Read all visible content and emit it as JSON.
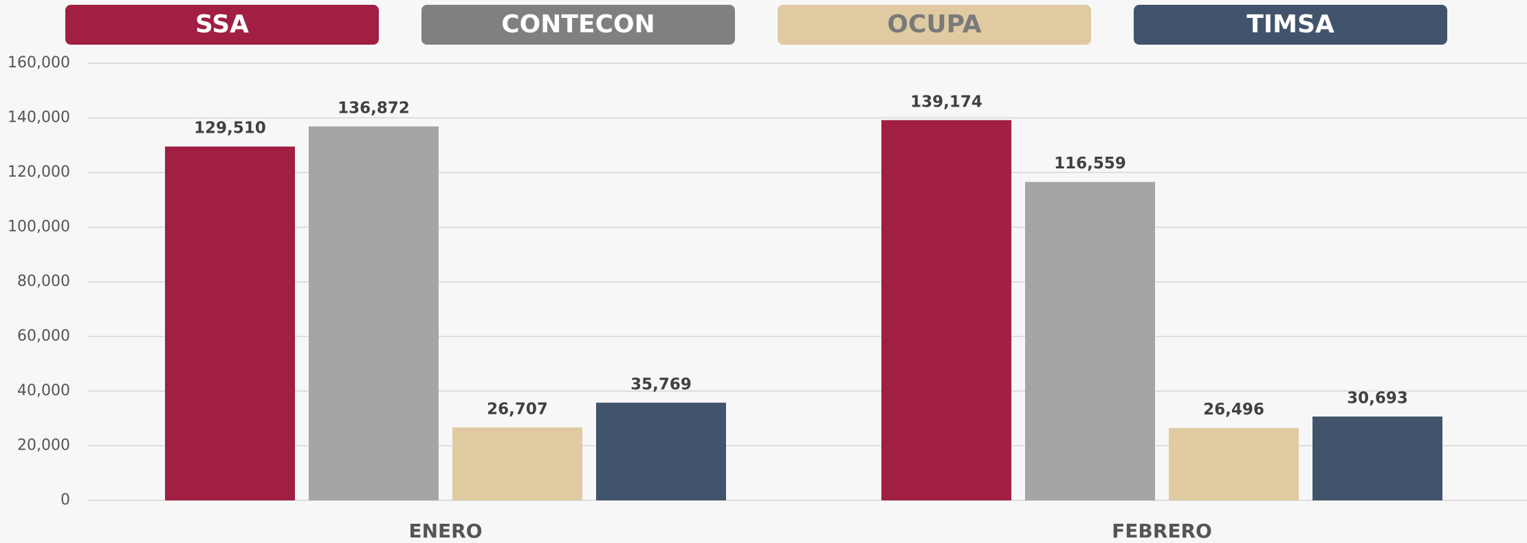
{
  "chart_data": {
    "type": "bar",
    "categories": [
      "ENERO",
      "FEBRERO"
    ],
    "series": [
      {
        "name": "SSA",
        "color": "#a01f42",
        "values": [
          129510,
          139174
        ],
        "value_labels": [
          "129,510",
          "139,174"
        ]
      },
      {
        "name": "CONTECON",
        "color": "#a5a5a5",
        "values": [
          136872,
          116559
        ],
        "value_labels": [
          "136,872",
          "116,559"
        ]
      },
      {
        "name": "OCUPA",
        "color": "#e0caa2",
        "values": [
          26707,
          26496
        ],
        "value_labels": [
          "26,707",
          "26,496"
        ]
      },
      {
        "name": "TIMSA",
        "color": "#42546c",
        "values": [
          35769,
          30693
        ],
        "value_labels": [
          "35,769",
          "30,693"
        ]
      }
    ],
    "legend_colors": [
      "#a01f42",
      "#808080",
      "#e0caa2",
      "#42546c"
    ],
    "ylim": [
      0,
      160000
    ],
    "yticks": [
      0,
      {
        "value": 20000,
        "label": "20,000"
      },
      {
        "value": 40000,
        "label": "40,000"
      },
      {
        "value": 60000,
        "label": "60,000"
      },
      {
        "value": 80000,
        "label": "80,000"
      },
      {
        "value": 100000,
        "label": "100,000"
      },
      {
        "value": 120000,
        "label": "120,000"
      },
      {
        "value": 140000,
        "label": "140,000"
      },
      {
        "value": 160000,
        "label": "160,000"
      }
    ],
    "grid": true,
    "legend": "top"
  }
}
